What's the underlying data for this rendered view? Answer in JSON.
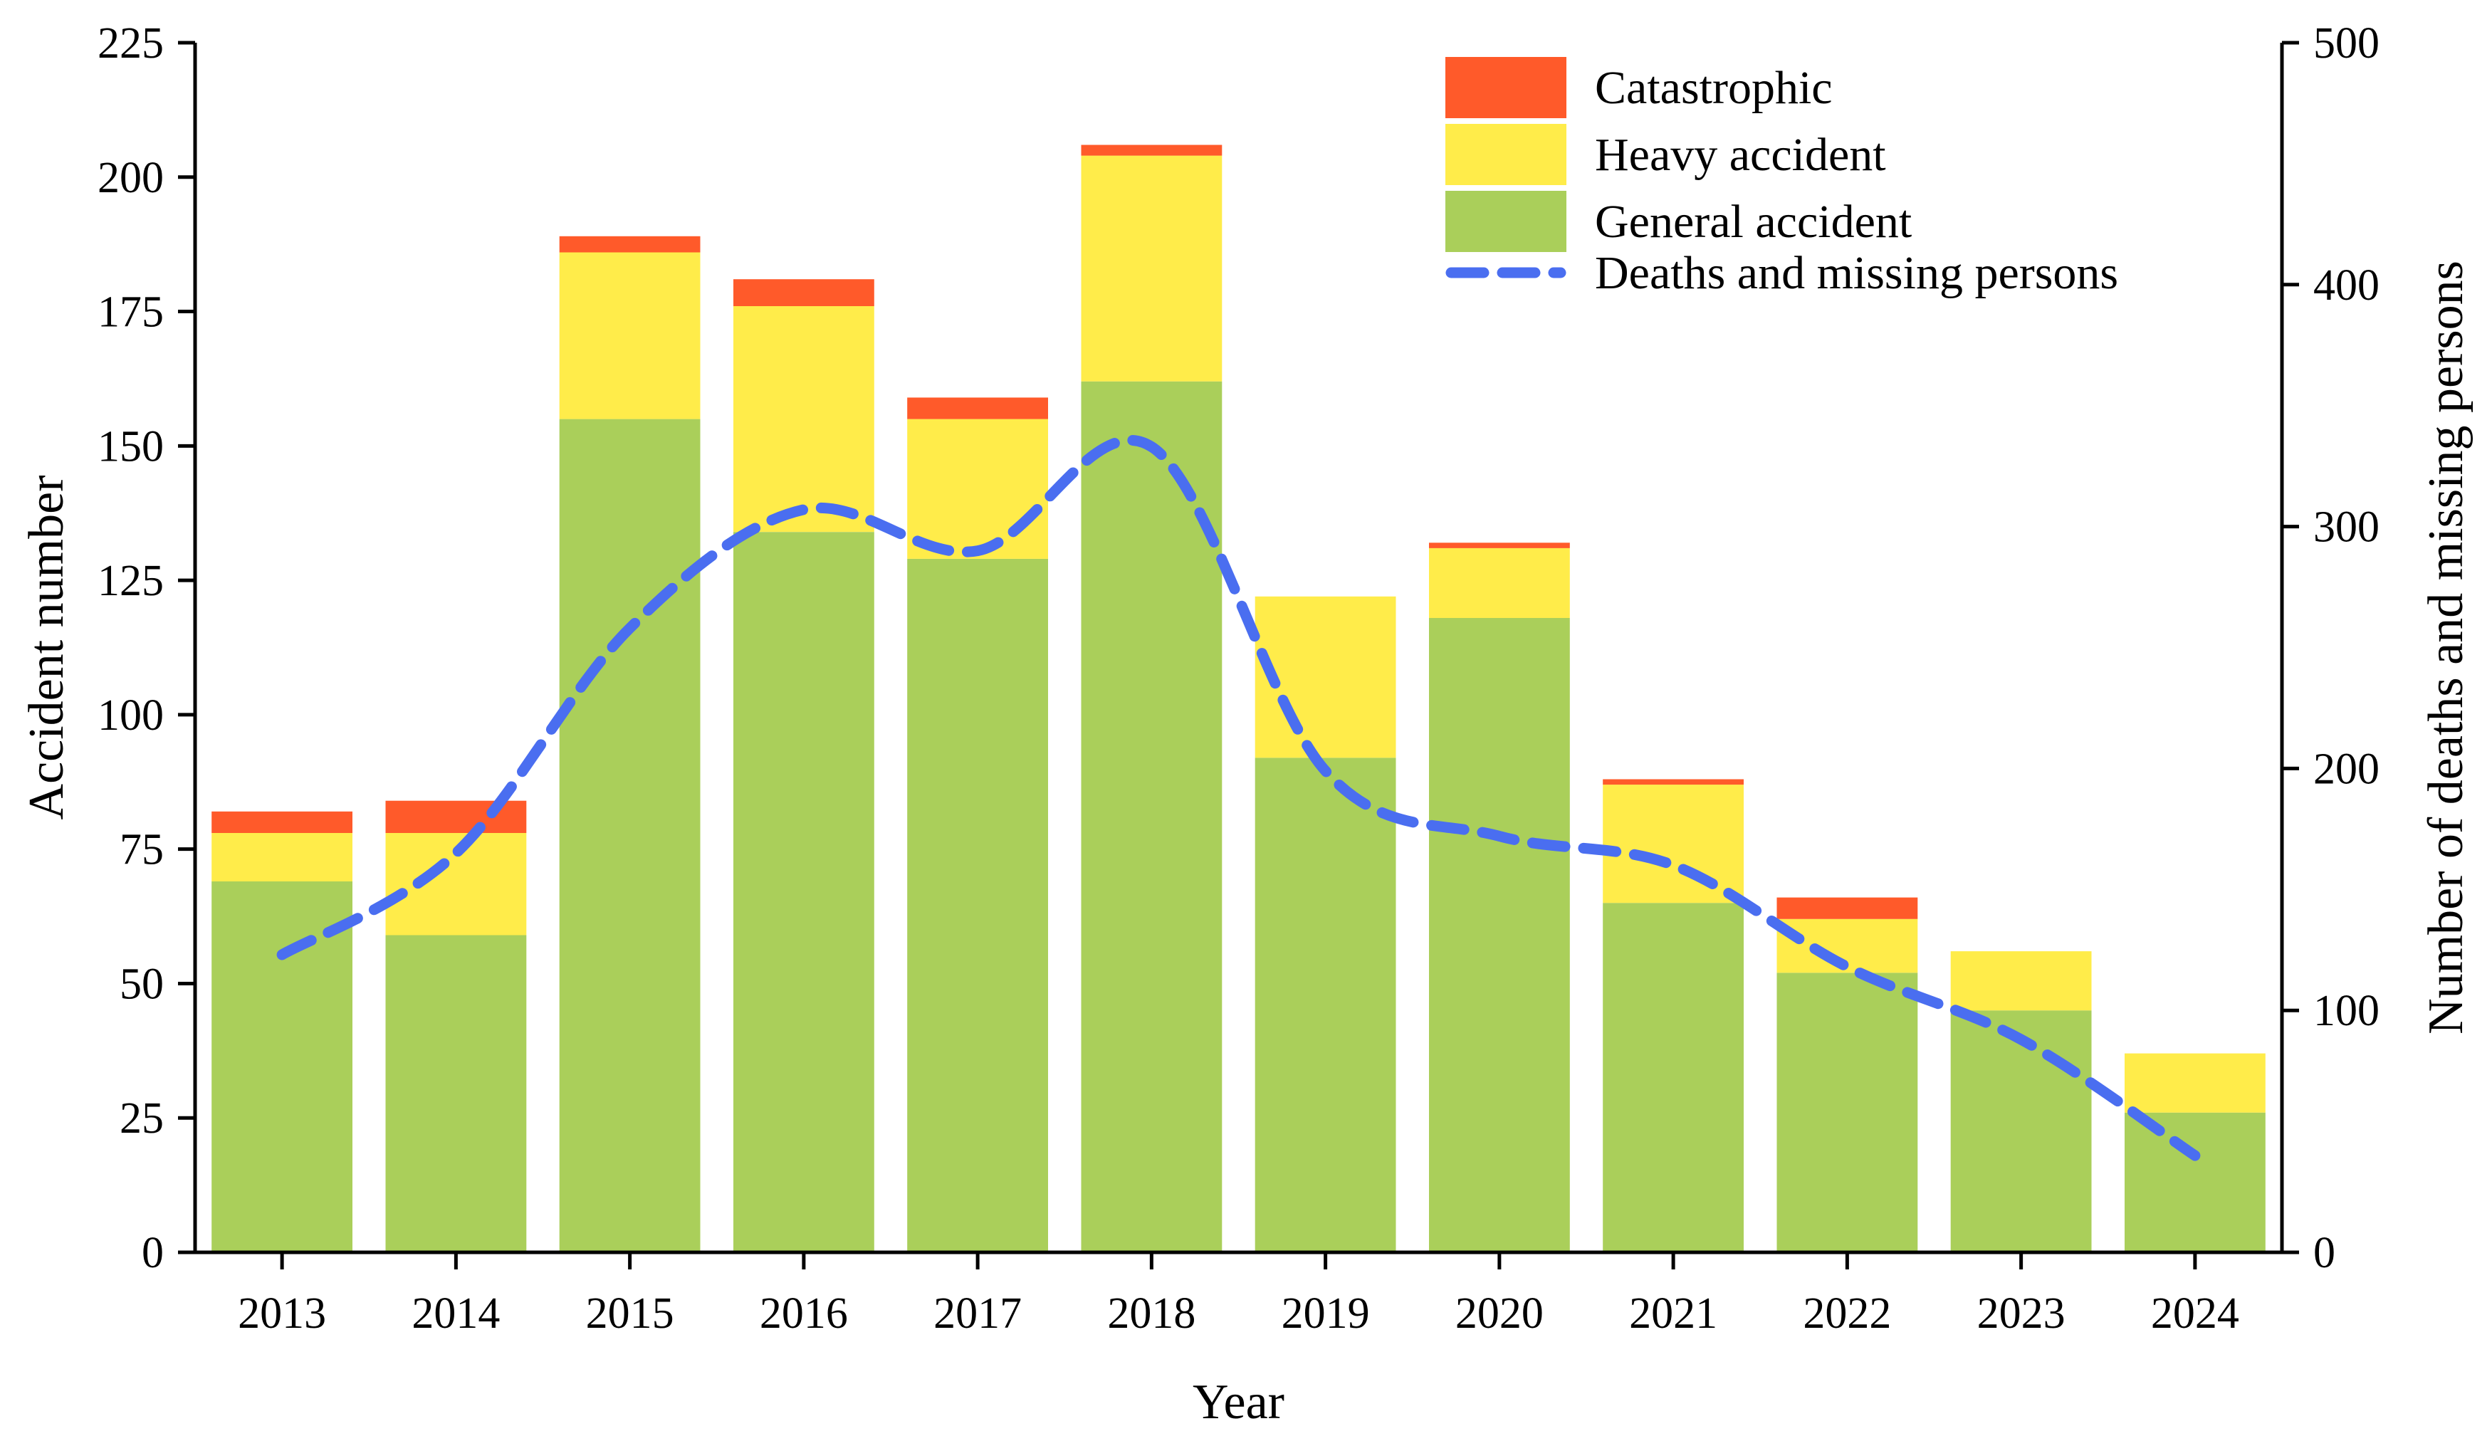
{
  "chart_data": {
    "type": "bar",
    "stacked": true,
    "title": "",
    "xlabel": "Year",
    "ylabel": "Accident number",
    "y2label": "Number of deaths and missing persons",
    "ylim": [
      0,
      225
    ],
    "y2lim": [
      0,
      500
    ],
    "yticks": [
      0,
      25,
      50,
      75,
      100,
      125,
      150,
      175,
      200,
      225
    ],
    "y2ticks": [
      0,
      100,
      200,
      300,
      400,
      500
    ],
    "categories": [
      "2013",
      "2014",
      "2015",
      "2016",
      "2017",
      "2018",
      "2019",
      "2020",
      "2021",
      "2022",
      "2023",
      "2024"
    ],
    "series": [
      {
        "name": "General accident",
        "color": "#AACF5A",
        "values": [
          69,
          59,
          155,
          134,
          129,
          162,
          92,
          118,
          65,
          52,
          45,
          26
        ]
      },
      {
        "name": "Heavy accident",
        "color": "#FFEC4A",
        "values": [
          9,
          19,
          31,
          42,
          26,
          42,
          30,
          13,
          22,
          10,
          11,
          11
        ]
      },
      {
        "name": "Catastrophic",
        "color": "#FF5A2A",
        "values": [
          4,
          6,
          3,
          5,
          4,
          2,
          0,
          1,
          1,
          4,
          0,
          0
        ]
      }
    ],
    "line_series": {
      "name": "Deaths and missing persons",
      "color": "#4A6EF0",
      "axis": "right",
      "values": [
        123,
        165,
        258,
        307,
        290,
        333,
        199,
        172,
        160,
        118,
        88,
        40
      ]
    },
    "legend_order": [
      "Catastrophic",
      "Heavy accident",
      "General accident",
      "Deaths and missing persons"
    ],
    "legend_position": "top-right",
    "grid": false
  }
}
